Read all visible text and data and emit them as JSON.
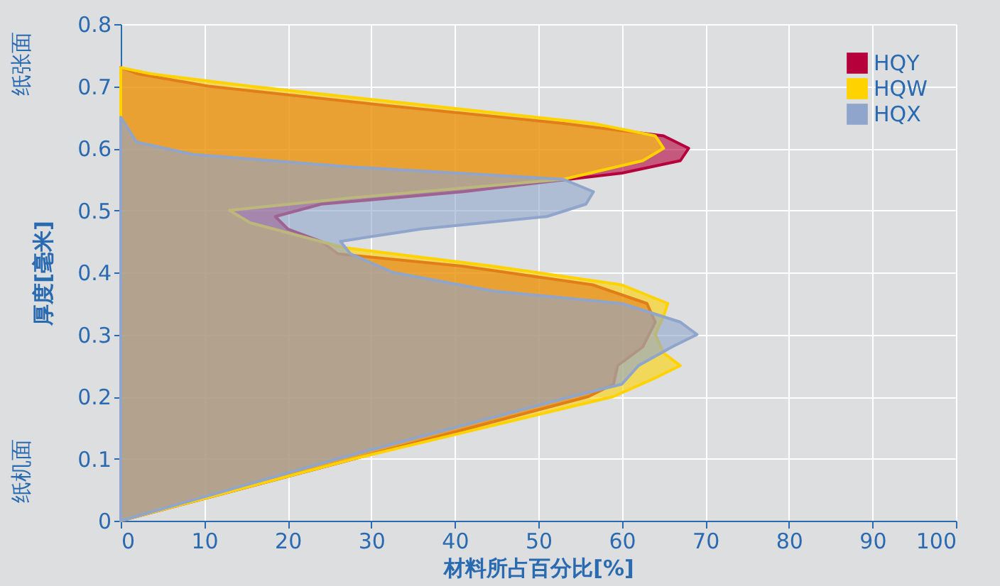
{
  "chart_data": {
    "type": "area",
    "orientation": "horizontal",
    "xlabel": "材料所占百分比[%]",
    "ylabel": "厚度[毫米]",
    "annotations": [
      "纸张面",
      "纸机面"
    ],
    "xlim": [
      0,
      100
    ],
    "xticks": [
      0,
      10,
      20,
      30,
      40,
      50,
      60,
      70,
      80,
      90,
      100
    ],
    "ylim": [
      0,
      0.8
    ],
    "yticks": [
      0,
      0.1,
      0.2,
      0.3,
      0.4,
      0.5,
      0.6,
      0.7,
      0.8
    ],
    "grid": true,
    "legend": "top right",
    "series": [
      {
        "name": "HQY",
        "color": "#b5003b",
        "x": [
          0,
          0.1,
          0.2,
          0.22,
          0.25,
          0.28,
          0.32,
          0.35,
          0.38,
          0.41,
          0.43,
          0.45,
          0.47,
          0.49,
          0.51,
          0.53,
          0.56,
          0.58,
          0.6,
          0.62,
          0.64,
          0.67,
          0.7,
          0.72,
          0.73
        ],
        "values": [
          0,
          28,
          56,
          59,
          59.5,
          62.5,
          64,
          63,
          56.5,
          41,
          26,
          24,
          20,
          18.5,
          24,
          41,
          60,
          67,
          68,
          65,
          53,
          31,
          10.5,
          2,
          0
        ]
      },
      {
        "name": "HQW",
        "color": "#ffd200",
        "x": [
          0,
          0.1,
          0.2,
          0.23,
          0.25,
          0.27,
          0.3,
          0.33,
          0.35,
          0.38,
          0.41,
          0.44,
          0.48,
          0.5,
          0.52,
          0.55,
          0.58,
          0.6,
          0.62,
          0.64,
          0.67,
          0.7,
          0.72,
          0.73
        ],
        "values": [
          0,
          28,
          59,
          64,
          67,
          65,
          64,
          65,
          65.5,
          60,
          44.6,
          26.7,
          15.5,
          13,
          27.5,
          53,
          62.5,
          65,
          64,
          56.6,
          36,
          15.5,
          3.6,
          0
        ]
      },
      {
        "name": "HQX",
        "color": "#8fa5cc",
        "x": [
          0,
          0.1,
          0.2,
          0.22,
          0.25,
          0.28,
          0.3,
          0.32,
          0.35,
          0.37,
          0.4,
          0.43,
          0.45,
          0.47,
          0.49,
          0.51,
          0.53,
          0.55,
          0.57,
          0.59,
          0.61,
          0.65
        ],
        "values": [
          0,
          26,
          54,
          60,
          62,
          66,
          69,
          67,
          60,
          44.6,
          32.6,
          27.5,
          26.3,
          36,
          51,
          55.7,
          56.6,
          53,
          27.5,
          8.7,
          1.9,
          0
        ]
      }
    ]
  }
}
